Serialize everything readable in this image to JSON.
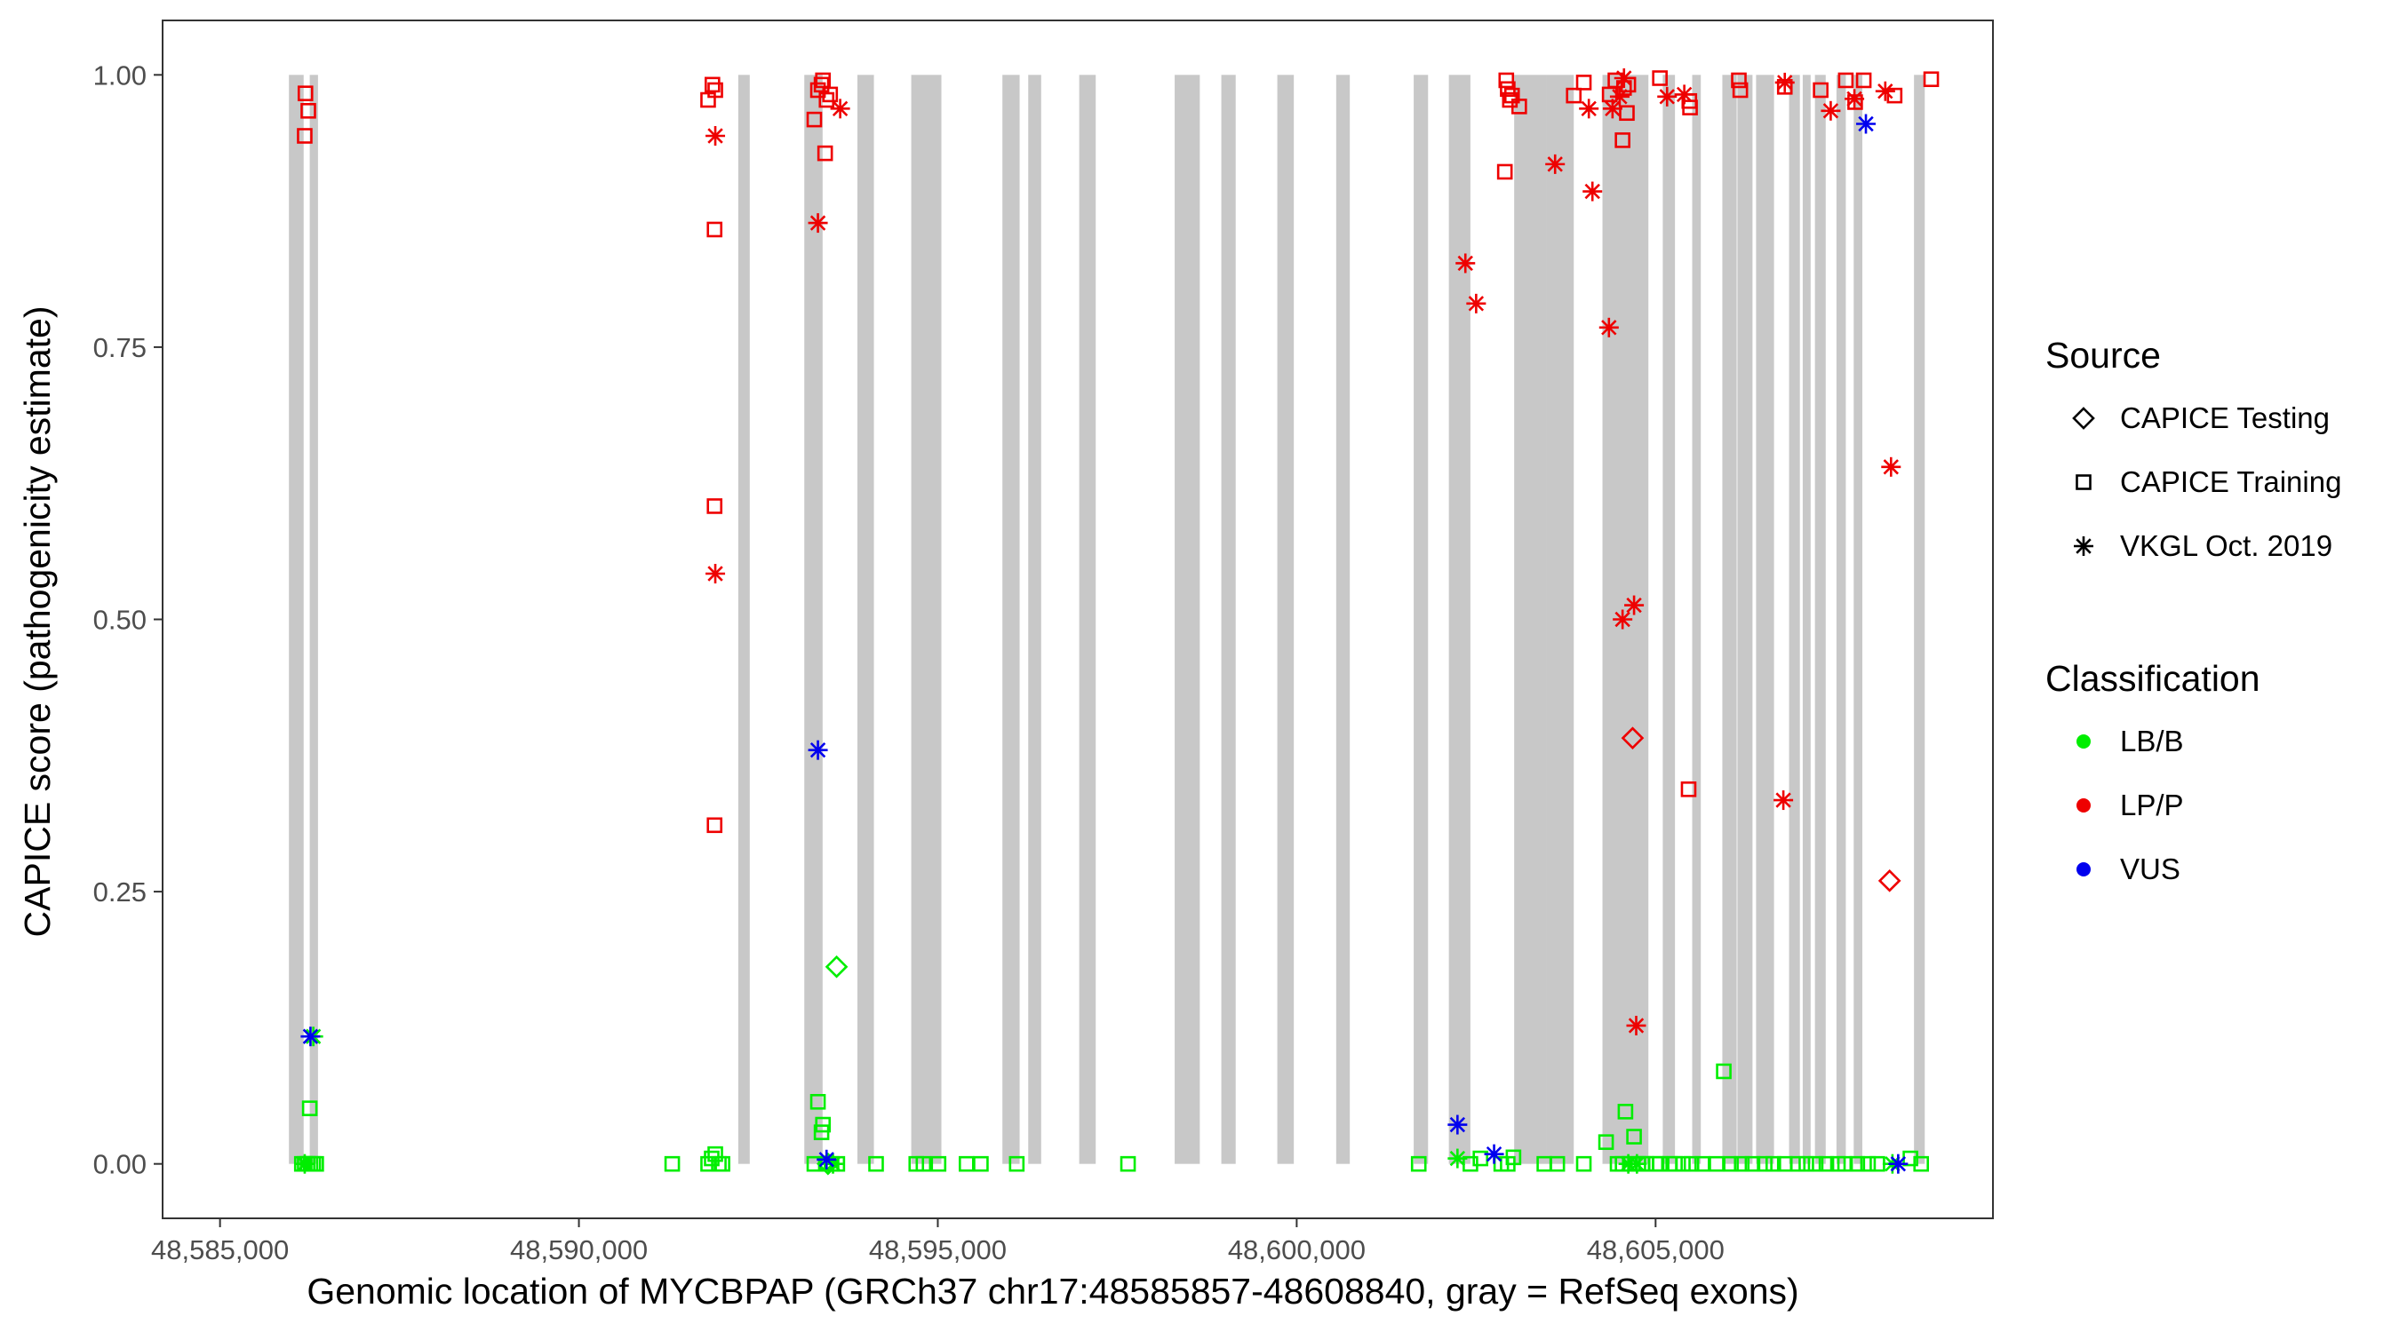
{
  "chart_data": {
    "type": "scatter",
    "xlabel": "Genomic location of MYCBPAP (GRCh37 chr17:48585857-48608840, gray = RefSeq exons)",
    "ylabel": "CAPICE score (pathogenicity estimate)",
    "xlim": [
      48584200,
      48609700
    ],
    "ylim": [
      -0.05,
      1.05
    ],
    "x_ticks": [
      48585000,
      48590000,
      48595000,
      48600000,
      48605000
    ],
    "x_tick_labels": [
      "48,585,000",
      "48,590,000",
      "48,595,000",
      "48,600,000",
      "48,605,000"
    ],
    "y_ticks": [
      0,
      0.25,
      0.5,
      0.75,
      1
    ],
    "y_tick_labels": [
      "0.00",
      "0.25",
      "0.50",
      "0.75",
      "1.00"
    ],
    "grid": false,
    "legend_position": "right",
    "shape_legend": {
      "title": "Source",
      "items": [
        {
          "label": "CAPICE Testing",
          "shape": "diamond"
        },
        {
          "label": "CAPICE Training",
          "shape": "square"
        },
        {
          "label": "VKGL Oct. 2019",
          "shape": "asterisk"
        }
      ]
    },
    "color_legend": {
      "title": "Classification",
      "items": [
        {
          "label": "LB/B",
          "color": "#00ee00"
        },
        {
          "label": "LP/P",
          "color": "#ee0000"
        },
        {
          "label": "VUS",
          "color": "#0000ee"
        }
      ]
    },
    "exon_color": "#c8c8c8",
    "exons": [
      [
        48585960,
        48586165
      ],
      [
        48586250,
        48586365
      ],
      [
        48592220,
        48592380
      ],
      [
        48593140,
        48593395
      ],
      [
        48593880,
        48594110
      ],
      [
        48594630,
        48595050
      ],
      [
        48595900,
        48596140
      ],
      [
        48596260,
        48596440
      ],
      [
        48596970,
        48597200
      ],
      [
        48598300,
        48598650
      ],
      [
        48598950,
        48599150
      ],
      [
        48599730,
        48599960
      ],
      [
        48600550,
        48600740
      ],
      [
        48601630,
        48601830
      ],
      [
        48602120,
        48602420
      ],
      [
        48603030,
        48603480
      ],
      [
        48603480,
        48603860
      ],
      [
        48604260,
        48604900
      ],
      [
        48605100,
        48605270
      ],
      [
        48605510,
        48605630
      ],
      [
        48605930,
        48606130
      ],
      [
        48606140,
        48606350
      ],
      [
        48606400,
        48606650
      ],
      [
        48606860,
        48607010
      ],
      [
        48607050,
        48607160
      ],
      [
        48607220,
        48607370
      ],
      [
        48607520,
        48607650
      ],
      [
        48607760,
        48607880
      ],
      [
        48608600,
        48608750
      ]
    ],
    "series": [
      {
        "source": "CAPICE Training",
        "classification": "LB/B",
        "points": [
          [
            48586140,
            0
          ],
          [
            48586180,
            0
          ],
          [
            48586220,
            0
          ],
          [
            48586260,
            0
          ],
          [
            48586300,
            0
          ],
          [
            48586340,
            0
          ],
          [
            48586250,
            0.051
          ],
          [
            48591300,
            0
          ],
          [
            48591800,
            0
          ],
          [
            48591850,
            0.005
          ],
          [
            48591900,
            0.009
          ],
          [
            48591950,
            0
          ],
          [
            48592000,
            0
          ],
          [
            48593280,
            0
          ],
          [
            48593330,
            0.057
          ],
          [
            48593380,
            0.029
          ],
          [
            48593400,
            0.036
          ],
          [
            48593440,
            0
          ],
          [
            48593520,
            0
          ],
          [
            48593600,
            0
          ],
          [
            48594140,
            0
          ],
          [
            48594700,
            0
          ],
          [
            48594800,
            0
          ],
          [
            48595010,
            0
          ],
          [
            48595400,
            0
          ],
          [
            48595600,
            0
          ],
          [
            48596100,
            0
          ],
          [
            48597650,
            0
          ],
          [
            48601700,
            0
          ],
          [
            48602420,
            0
          ],
          [
            48602560,
            0.005
          ],
          [
            48602850,
            0
          ],
          [
            48602940,
            0
          ],
          [
            48603020,
            0.006
          ],
          [
            48603450,
            0
          ],
          [
            48603630,
            0
          ],
          [
            48604000,
            0
          ],
          [
            48604310,
            0.02
          ],
          [
            48604470,
            0
          ],
          [
            48604540,
            0
          ],
          [
            48604580,
            0.048
          ],
          [
            48604640,
            0
          ],
          [
            48604700,
            0.025
          ],
          [
            48604760,
            0
          ],
          [
            48604820,
            0
          ],
          [
            48604870,
            0
          ],
          [
            48605000,
            0
          ],
          [
            48605060,
            0
          ],
          [
            48605200,
            0
          ],
          [
            48605270,
            0
          ],
          [
            48605380,
            0
          ],
          [
            48605500,
            0
          ],
          [
            48605650,
            0
          ],
          [
            48605850,
            0
          ],
          [
            48605950,
            0.085
          ],
          [
            48606050,
            0
          ],
          [
            48606200,
            0
          ],
          [
            48606350,
            0
          ],
          [
            48606520,
            0
          ],
          [
            48606640,
            0
          ],
          [
            48606800,
            0
          ],
          [
            48606980,
            0
          ],
          [
            48607100,
            0
          ],
          [
            48607230,
            0
          ],
          [
            48607380,
            0
          ],
          [
            48607540,
            0
          ],
          [
            48607640,
            0
          ],
          [
            48607810,
            0
          ],
          [
            48607960,
            0
          ],
          [
            48608090,
            0
          ],
          [
            48608550,
            0.005
          ],
          [
            48608700,
            0
          ]
        ]
      },
      {
        "source": "CAPICE Testing",
        "classification": "LB/B",
        "points": [
          [
            48593590,
            0.181
          ],
          [
            48593470,
            0
          ]
        ]
      },
      {
        "source": "VKGL Oct. 2019",
        "classification": "LB/B",
        "points": [
          [
            48586180,
            0
          ],
          [
            48586300,
            0.117
          ],
          [
            48593540,
            0
          ],
          [
            48602240,
            0.005
          ],
          [
            48604620,
            0
          ],
          [
            48604740,
            0
          ],
          [
            48608300,
            0
          ]
        ]
      },
      {
        "source": "CAPICE Training",
        "classification": "LP/P",
        "points": [
          [
            48586190,
            0.983
          ],
          [
            48586230,
            0.967
          ],
          [
            48586180,
            0.944
          ],
          [
            48591800,
            0.977
          ],
          [
            48591860,
            0.991
          ],
          [
            48591900,
            0.986
          ],
          [
            48591890,
            0.858
          ],
          [
            48591890,
            0.604
          ],
          [
            48591890,
            0.311
          ],
          [
            48593280,
            0.959
          ],
          [
            48593330,
            0.986
          ],
          [
            48593380,
            0.991
          ],
          [
            48593400,
            0.995
          ],
          [
            48593450,
            0.977
          ],
          [
            48593500,
            0.982
          ],
          [
            48593430,
            0.928
          ],
          [
            48602920,
            0.995
          ],
          [
            48602940,
            0.987
          ],
          [
            48602970,
            0.977
          ],
          [
            48603000,
            0.981
          ],
          [
            48603100,
            0.971
          ],
          [
            48602900,
            0.911
          ],
          [
            48603860,
            0.981
          ],
          [
            48604000,
            0.993
          ],
          [
            48604360,
            0.982
          ],
          [
            48604440,
            0.995
          ],
          [
            48604560,
            0.988
          ],
          [
            48604600,
            0.965
          ],
          [
            48604540,
            0.94
          ],
          [
            48604620,
            0.991
          ],
          [
            48605060,
            0.997
          ],
          [
            48605470,
            0.976
          ],
          [
            48605480,
            0.97
          ],
          [
            48605460,
            0.344
          ],
          [
            48606160,
            0.995
          ],
          [
            48606180,
            0.986
          ],
          [
            48606800,
            0.989
          ],
          [
            48607300,
            0.986
          ],
          [
            48607650,
            0.995
          ],
          [
            48607780,
            0.975
          ],
          [
            48607900,
            0.995
          ],
          [
            48608330,
            0.981
          ],
          [
            48608840,
            0.996
          ]
        ]
      },
      {
        "source": "CAPICE Testing",
        "classification": "LP/P",
        "points": [
          [
            48604680,
            0.391
          ],
          [
            48608260,
            0.26
          ]
        ]
      },
      {
        "source": "VKGL Oct. 2019",
        "classification": "LP/P",
        "points": [
          [
            48591900,
            0.944
          ],
          [
            48591900,
            0.542
          ],
          [
            48593330,
            0.864
          ],
          [
            48593640,
            0.969
          ],
          [
            48602350,
            0.827
          ],
          [
            48602500,
            0.79
          ],
          [
            48603600,
            0.918
          ],
          [
            48604070,
            0.969
          ],
          [
            48604120,
            0.893
          ],
          [
            48604350,
            0.768
          ],
          [
            48604400,
            0.969
          ],
          [
            48604500,
            0.98
          ],
          [
            48604560,
            0.997
          ],
          [
            48604540,
            0.5
          ],
          [
            48604700,
            0.513
          ],
          [
            48604730,
            0.127
          ],
          [
            48605160,
            0.98
          ],
          [
            48605400,
            0.982
          ],
          [
            48606780,
            0.334
          ],
          [
            48606800,
            0.993
          ],
          [
            48607440,
            0.967
          ],
          [
            48607770,
            0.978
          ],
          [
            48608200,
            0.985
          ],
          [
            48608280,
            0.64
          ]
        ]
      },
      {
        "source": "VKGL Oct. 2019",
        "classification": "VUS",
        "points": [
          [
            48586260,
            0.117
          ],
          [
            48593330,
            0.38
          ],
          [
            48593450,
            0.004
          ],
          [
            48602240,
            0.036
          ],
          [
            48602750,
            0.009
          ],
          [
            48607930,
            0.955
          ],
          [
            48608380,
            0
          ]
        ]
      }
    ]
  }
}
